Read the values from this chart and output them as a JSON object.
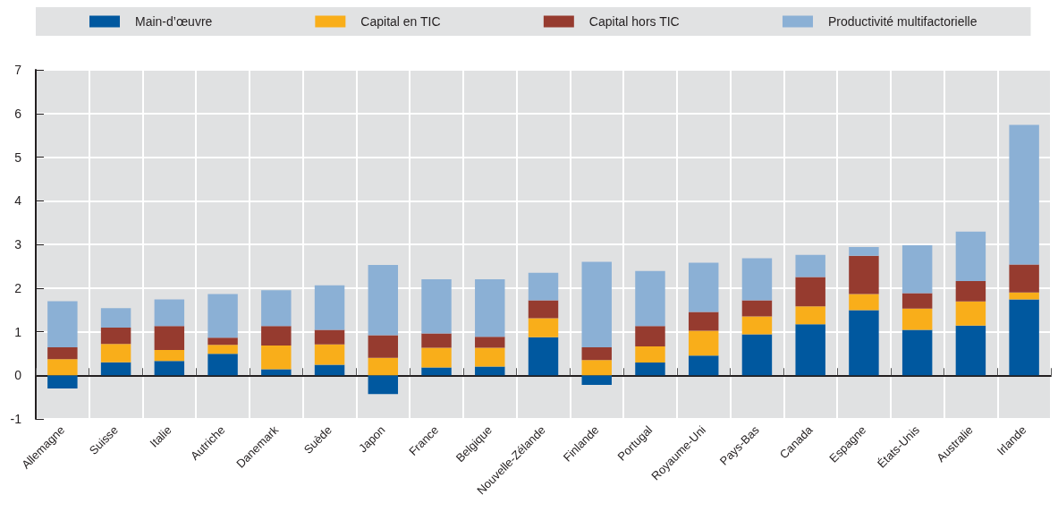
{
  "chart_data": {
    "type": "bar",
    "stacked": true,
    "legend": "top",
    "grid": true,
    "categories": [
      "Allemagne",
      "Suisse",
      "Italie",
      "Autriche",
      "Danemark",
      "Suède",
      "Japon",
      "France",
      "Belgique",
      "Nouvelle-Zélande",
      "Finlande",
      "Portugal",
      "Royaume-Uni",
      "Pays-Bas",
      "Canada",
      "Espagne",
      "États-Unis",
      "Australie",
      "Irlande"
    ],
    "series": [
      {
        "name": "Main-d’œuvre",
        "color": "#00589f",
        "values": [
          -0.3,
          0.3,
          0.33,
          0.49,
          0.14,
          0.24,
          -0.43,
          0.18,
          0.2,
          0.87,
          -0.22,
          0.29,
          0.45,
          0.94,
          1.17,
          1.49,
          1.04,
          1.14,
          1.74
        ]
      },
      {
        "name": "Capital en TIC",
        "color": "#f9ae1a",
        "values": [
          0.37,
          0.42,
          0.25,
          0.21,
          0.54,
          0.47,
          0.4,
          0.45,
          0.43,
          0.44,
          0.35,
          0.37,
          0.57,
          0.41,
          0.41,
          0.37,
          0.49,
          0.55,
          0.16
        ]
      },
      {
        "name": "Capital hors TIC",
        "color": "#963b2f",
        "values": [
          0.27,
          0.37,
          0.55,
          0.16,
          0.45,
          0.33,
          0.52,
          0.33,
          0.25,
          0.41,
          0.29,
          0.47,
          0.43,
          0.37,
          0.67,
          0.88,
          0.35,
          0.47,
          0.64
        ]
      },
      {
        "name": "Productivité multifactorielle",
        "color": "#8bb0d5",
        "values": [
          1.06,
          0.45,
          0.61,
          1.0,
          0.82,
          1.02,
          1.61,
          1.24,
          1.32,
          0.63,
          1.96,
          1.26,
          1.13,
          0.96,
          0.51,
          0.2,
          1.1,
          1.13,
          3.2
        ]
      }
    ],
    "ylim": [
      -1,
      7
    ],
    "yticks": [
      -1,
      0,
      1,
      2,
      3,
      4,
      5,
      6,
      7
    ]
  }
}
